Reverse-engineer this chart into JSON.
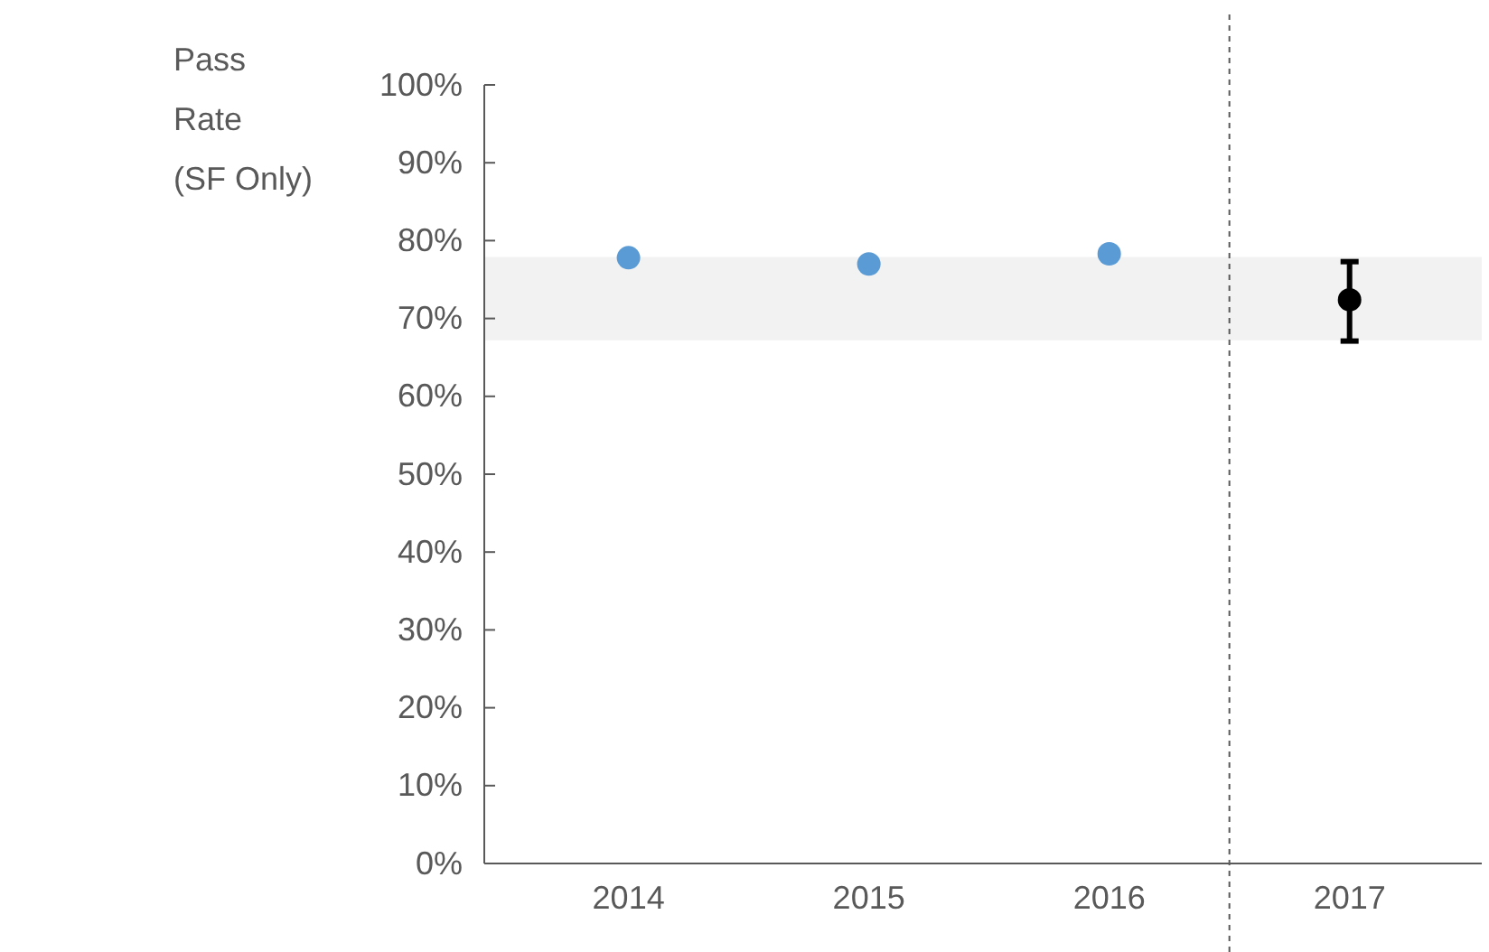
{
  "chart_data": {
    "type": "scatter",
    "ylabel": "Pass Rate (SF Only)",
    "xlim": [
      2013.4,
      2017.55
    ],
    "xticks": [
      2014,
      2015,
      2016,
      2017
    ],
    "ylim": [
      0,
      100
    ],
    "yticks": [
      {
        "value": 0,
        "label": "0%"
      },
      {
        "value": 10,
        "label": "10%"
      },
      {
        "value": 20,
        "label": "20%"
      },
      {
        "value": 30,
        "label": "30%"
      },
      {
        "value": 40,
        "label": "40%"
      },
      {
        "value": 50,
        "label": "50%"
      },
      {
        "value": 60,
        "label": "60%"
      },
      {
        "value": 70,
        "label": "70%"
      },
      {
        "value": 80,
        "label": "80%"
      },
      {
        "value": 90,
        "label": "90%"
      },
      {
        "value": 100,
        "label": "100%"
      }
    ],
    "series": [
      {
        "color": "#5b9bd5",
        "x": [
          2014,
          2015,
          2016
        ],
        "values": [
          77.8,
          77.0,
          78.3
        ]
      },
      {
        "color": "#000000",
        "x": [
          2017
        ],
        "values": [
          72.4
        ],
        "errors": [
          [
            67.1,
            77.3
          ]
        ]
      }
    ],
    "bands": [
      {
        "axis": "y",
        "from": 67.2,
        "to": 77.9,
        "color": "#f2f2f2"
      }
    ],
    "ref_lines": [
      {
        "axis": "x",
        "value": 2016.5,
        "color": "#595959",
        "line_style": "dashed"
      }
    ],
    "marker": "circle",
    "grid": false
  }
}
